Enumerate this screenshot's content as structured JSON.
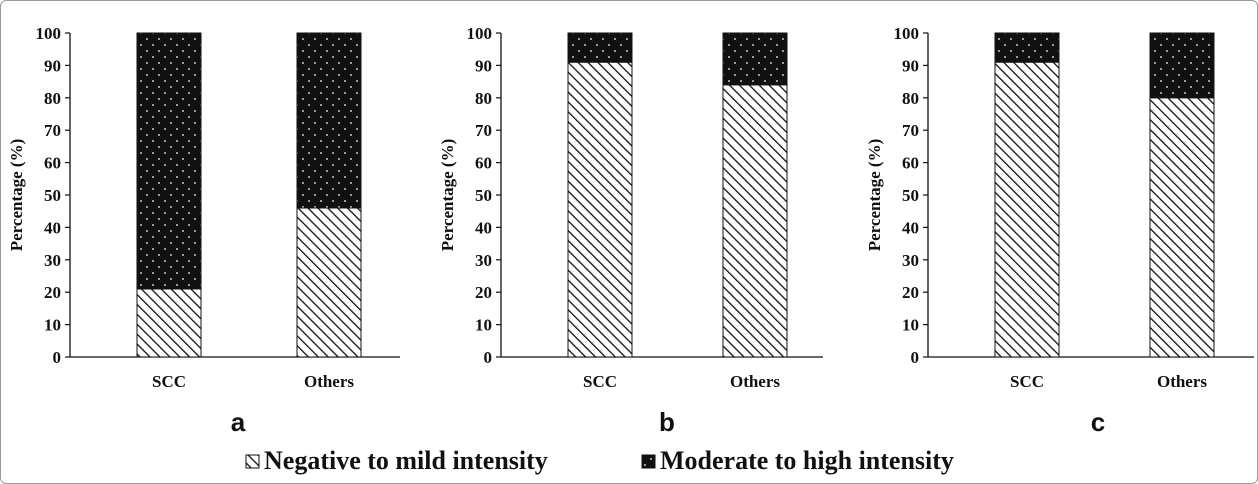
{
  "chart_data": [
    {
      "type": "bar",
      "stacked": true,
      "panel_label": "a",
      "categories": [
        "SCC",
        "Others"
      ],
      "series": [
        {
          "name": "Negative to mild intensity",
          "values": [
            21,
            46
          ]
        },
        {
          "name": "Moderate to high intensity",
          "values": [
            79,
            54
          ]
        }
      ],
      "ylabel": "Percentage (%)",
      "ylim": [
        0,
        100
      ],
      "yticks": [
        0,
        10,
        20,
        30,
        40,
        50,
        60,
        70,
        80,
        90,
        100
      ]
    },
    {
      "type": "bar",
      "stacked": true,
      "panel_label": "b",
      "categories": [
        "SCC",
        "Others"
      ],
      "series": [
        {
          "name": "Negative to mild intensity",
          "values": [
            91,
            84
          ]
        },
        {
          "name": "Moderate to high intensity",
          "values": [
            9,
            16
          ]
        }
      ],
      "ylabel": "Percentage (%)",
      "ylim": [
        0,
        100
      ],
      "yticks": [
        0,
        10,
        20,
        30,
        40,
        50,
        60,
        70,
        80,
        90,
        100
      ]
    },
    {
      "type": "bar",
      "stacked": true,
      "panel_label": "c",
      "categories": [
        "SCC",
        "Others"
      ],
      "series": [
        {
          "name": "Negative to mild intensity",
          "values": [
            91,
            80
          ]
        },
        {
          "name": "Moderate to high intensity",
          "values": [
            9,
            20
          ]
        }
      ],
      "ylabel": "Percentage (%)",
      "ylim": [
        0,
        100
      ],
      "yticks": [
        0,
        10,
        20,
        30,
        40,
        50,
        60,
        70,
        80,
        90,
        100
      ]
    }
  ],
  "legend": {
    "placement": "bottom-center",
    "items": [
      {
        "label": "Negative to mild intensity",
        "pattern": "diagonal-hatch"
      },
      {
        "label": "Moderate to high intensity",
        "pattern": "black-dotted"
      }
    ]
  },
  "colors": {
    "bar_stroke": "#111111",
    "hatch": "#111111",
    "dot_fill": "#111111",
    "dot_color": "#ffffff"
  }
}
